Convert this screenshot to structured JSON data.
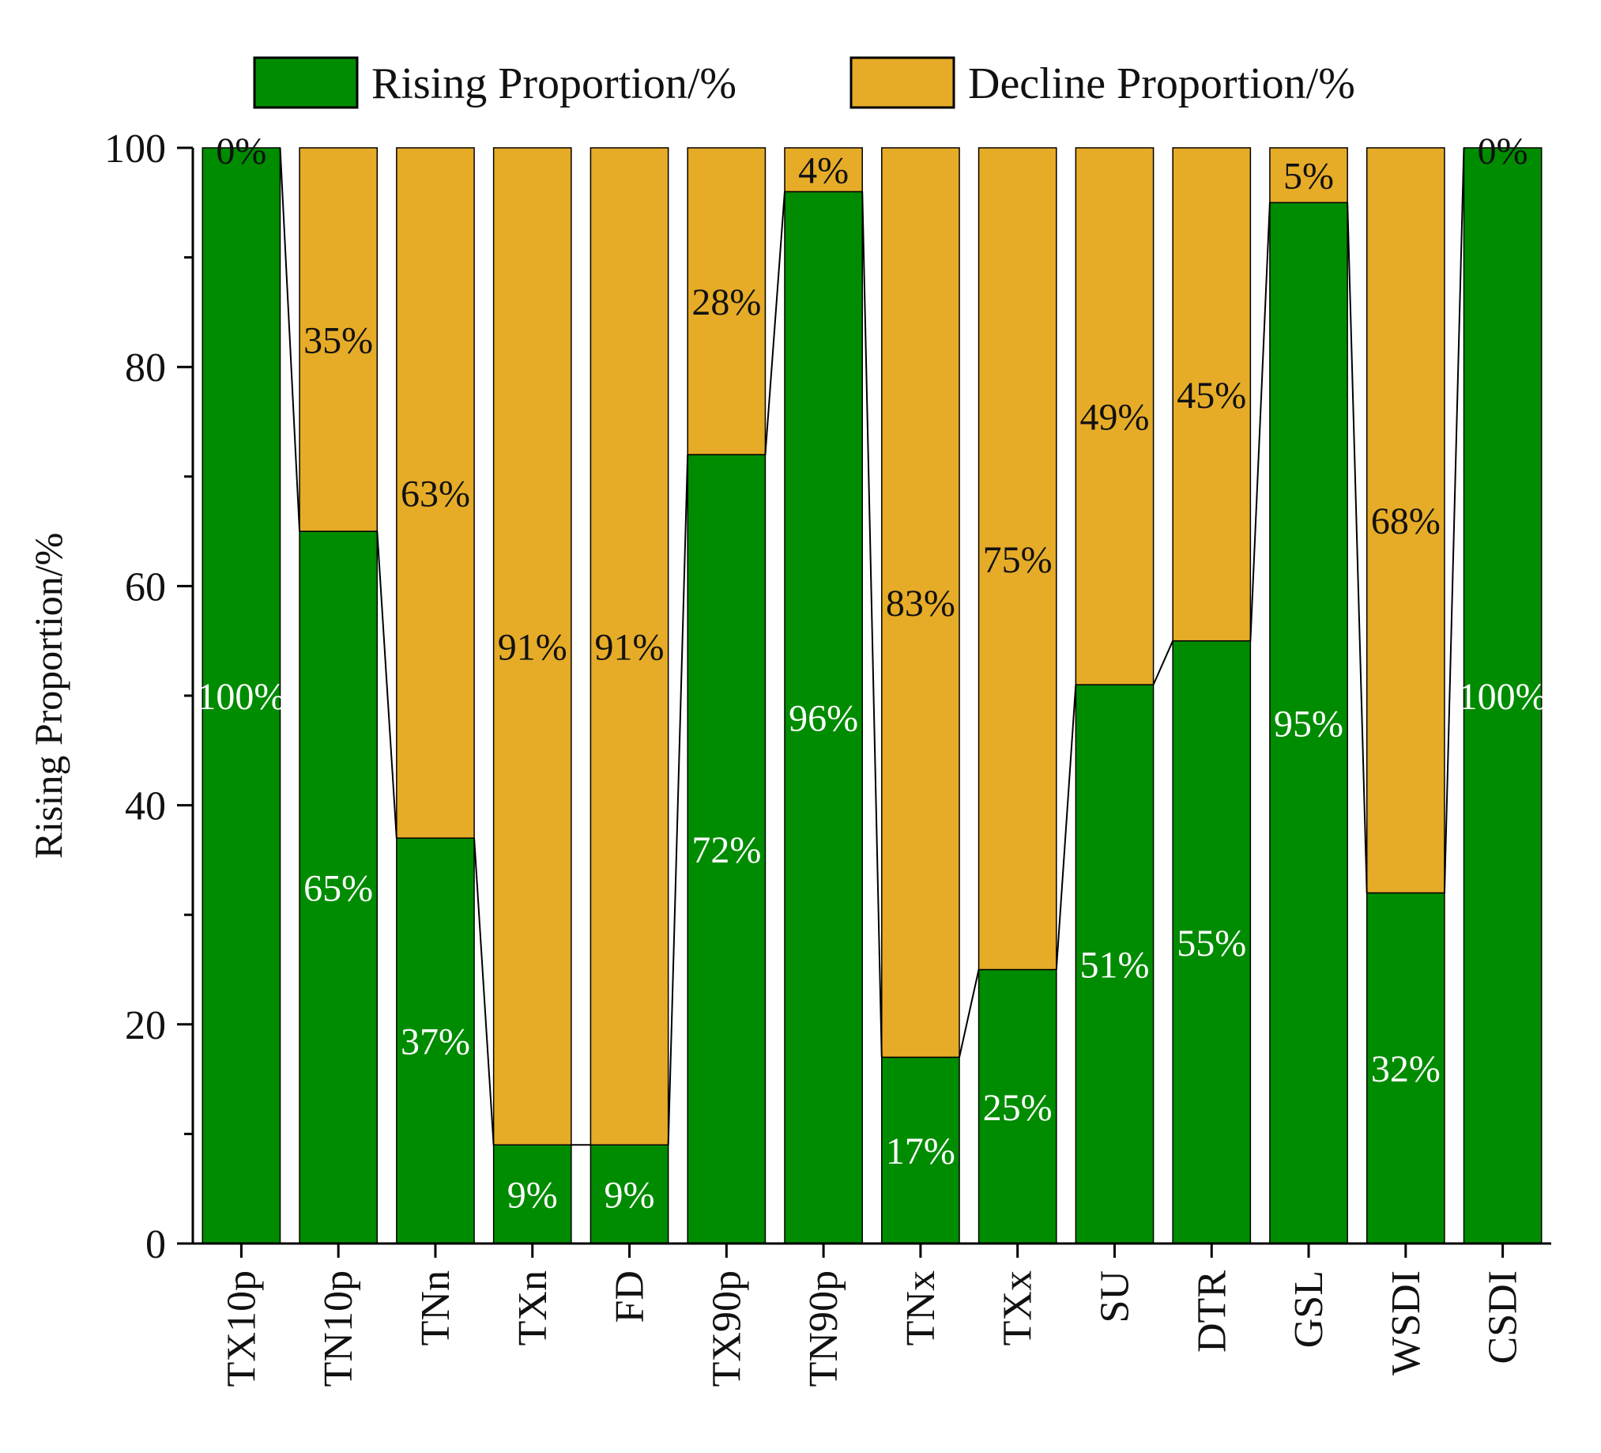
{
  "chart_data": {
    "type": "bar",
    "stacked": true,
    "title": "",
    "xlabel": "",
    "ylabel": "Rising Proportion/%",
    "ylim": [
      0,
      100
    ],
    "yticks": [
      0,
      20,
      40,
      60,
      80,
      100
    ],
    "categories": [
      "TX10p",
      "TN10p",
      "TNn",
      "TXn",
      "FD",
      "TX90p",
      "TN90p",
      "TNx",
      "TXx",
      "SU",
      "DTR",
      "GSL",
      "WSDI",
      "CSDI"
    ],
    "series": [
      {
        "name": "Rising Proportion/%",
        "color": "#008c00",
        "values": [
          100,
          65,
          37,
          9,
          9,
          72,
          96,
          17,
          25,
          51,
          55,
          95,
          32,
          100
        ],
        "labels": [
          "100%",
          "65%",
          "37%",
          "9%",
          "9%",
          "72%",
          "96%",
          "17%",
          "25%",
          "51%",
          "55%",
          "95%",
          "32%",
          "100%"
        ]
      },
      {
        "name": "Decline Proportion/%",
        "color": "#e6ac28",
        "values": [
          0,
          35,
          63,
          91,
          91,
          28,
          4,
          83,
          75,
          49,
          45,
          5,
          68,
          0
        ],
        "labels": [
          "0%",
          "35%",
          "63%",
          "91%",
          "91%",
          "28%",
          "4%",
          "83%",
          "75%",
          "49%",
          "45%",
          "5%",
          "68%",
          "0%"
        ]
      }
    ],
    "legend": {
      "position": "top"
    },
    "connector_lines": true
  }
}
